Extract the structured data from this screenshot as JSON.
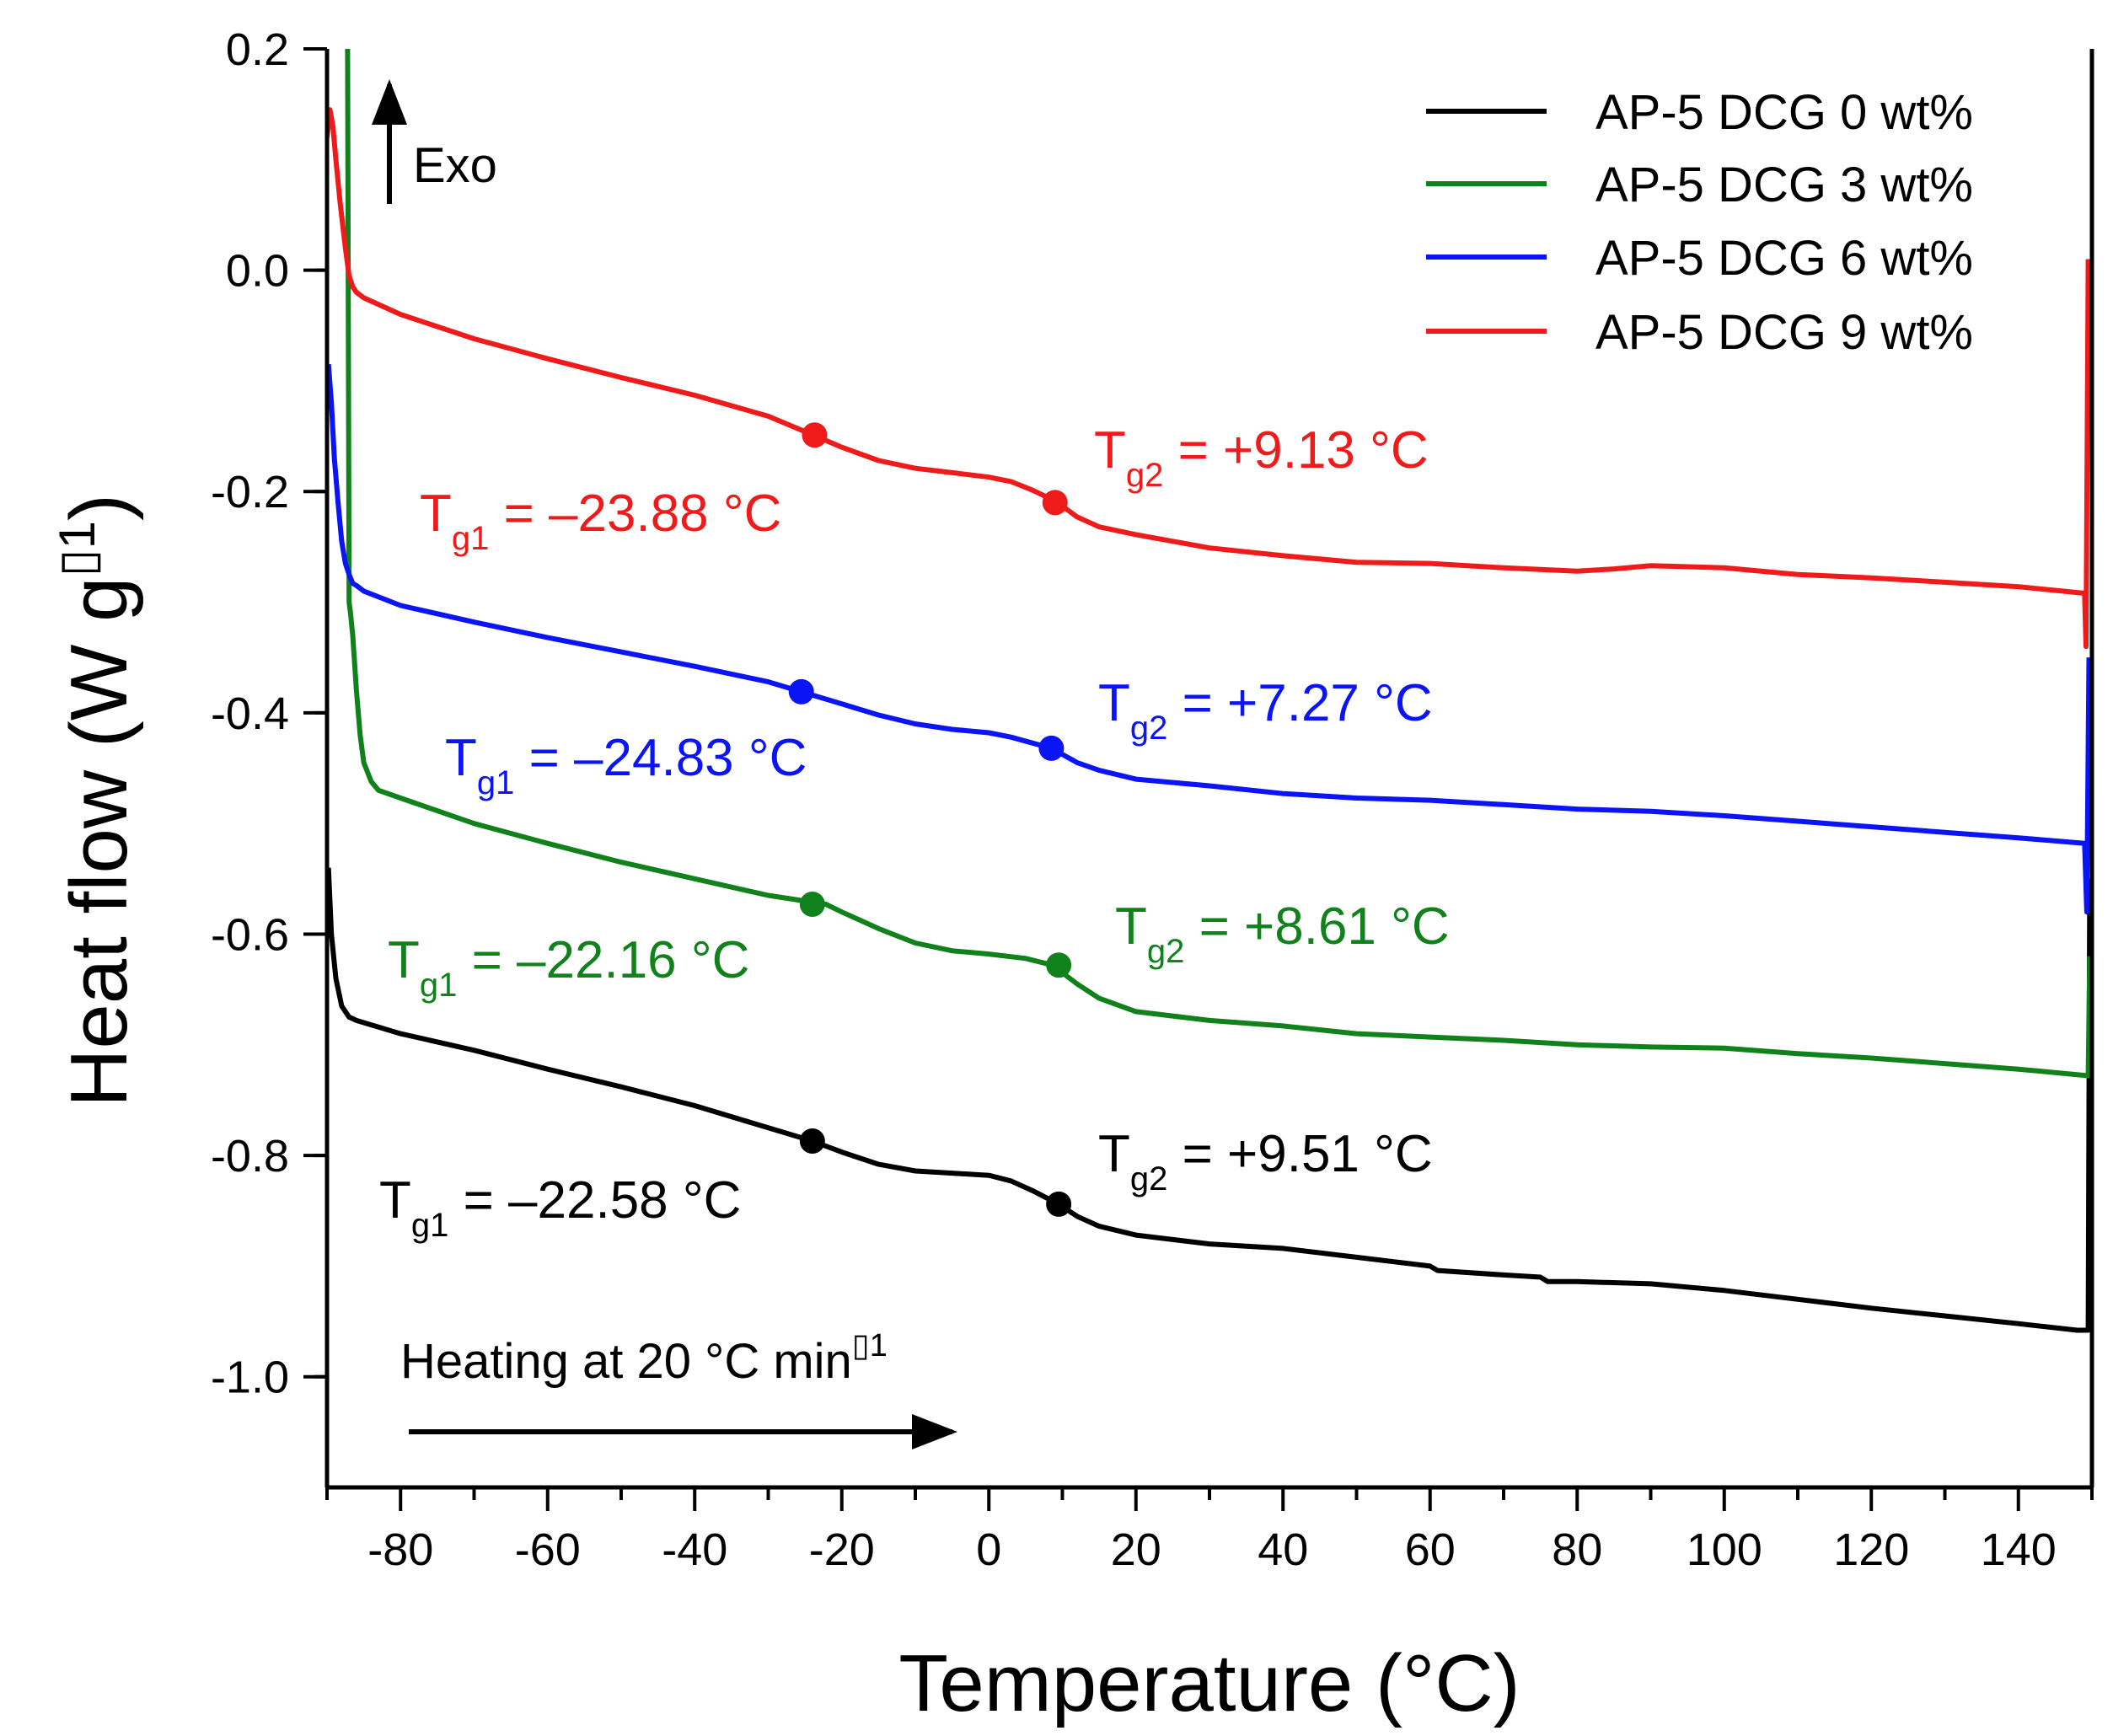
{
  "chart_data": {
    "type": "line",
    "title": "",
    "xlabel": "Temperature (°C)",
    "ylabel": "Heat flow (W g",
    "ylabel_sup": "1",
    "ylabel_close": ")",
    "xlim": [
      -90,
      150
    ],
    "ylim": [
      -1.1,
      0.2
    ],
    "xticks": [
      -80,
      -60,
      -40,
      -20,
      0,
      20,
      40,
      60,
      80,
      100,
      120,
      140
    ],
    "xtick_labels": [
      "-80",
      "-60",
      "-40",
      "-20",
      "0",
      "20",
      "40",
      "60",
      "80",
      "100",
      "120",
      "140"
    ],
    "yticks": [
      -1.0,
      -0.8,
      -0.6,
      -0.4,
      -0.2,
      0.0,
      0.2
    ],
    "ytick_labels": [
      "-1.0",
      "-0.8",
      "-0.6",
      "-0.4",
      "-0.2",
      "0.0",
      "0.2"
    ],
    "grid": false,
    "legend_position": "top-right",
    "series": [
      {
        "name": "AP-5 DCG 0 wt%",
        "color": "#000000",
        "x": [
          -89.8,
          -89.4,
          -88.8,
          -88,
          -87,
          -86,
          -85,
          -80,
          -70,
          -60,
          -50,
          -40,
          -30,
          -24,
          -20,
          -15,
          -10,
          -5,
          0,
          3,
          6,
          9.5,
          12,
          15,
          20,
          25,
          30,
          40,
          50,
          60,
          61,
          70,
          75,
          76,
          80,
          90,
          100,
          110,
          120,
          130,
          140,
          148,
          149.5,
          149.7
        ],
        "y": [
          -0.54,
          -0.6,
          -0.64,
          -0.665,
          -0.675,
          -0.678,
          -0.68,
          -0.69,
          -0.705,
          -0.722,
          -0.738,
          -0.755,
          -0.775,
          -0.787,
          -0.797,
          -0.808,
          -0.814,
          -0.816,
          -0.818,
          -0.823,
          -0.832,
          -0.844,
          -0.855,
          -0.864,
          -0.872,
          -0.876,
          -0.88,
          -0.884,
          -0.892,
          -0.9,
          -0.904,
          -0.908,
          -0.91,
          -0.914,
          -0.914,
          -0.916,
          -0.922,
          -0.93,
          -0.938,
          -0.945,
          -0.952,
          -0.958,
          -0.958,
          -0.55
        ]
      },
      {
        "name": "AP-5 DCG 3 wt%",
        "color": "#11821b",
        "x": [
          -87.2,
          -87,
          -86.8,
          -86.5,
          -86,
          -85.5,
          -85,
          -84,
          -83,
          -80,
          -70,
          -60,
          -50,
          -40,
          -30,
          -22.16,
          -20,
          -15,
          -10,
          -5,
          0,
          5,
          8.61,
          12,
          15,
          20,
          30,
          40,
          50,
          60,
          70,
          80,
          90,
          100,
          110,
          120,
          130,
          140,
          149.5,
          149.7
        ],
        "y": [
          0.2,
          -0.3,
          -0.31,
          -0.33,
          -0.38,
          -0.42,
          -0.445,
          -0.462,
          -0.47,
          -0.477,
          -0.5,
          -0.518,
          -0.535,
          -0.55,
          -0.565,
          -0.573,
          -0.58,
          -0.595,
          -0.608,
          -0.615,
          -0.618,
          -0.622,
          -0.628,
          -0.645,
          -0.658,
          -0.67,
          -0.678,
          -0.683,
          -0.69,
          -0.693,
          -0.696,
          -0.7,
          -0.702,
          -0.703,
          -0.708,
          -0.712,
          -0.717,
          -0.722,
          -0.728,
          -0.62
        ]
      },
      {
        "name": "AP-5 DCG 6 wt%",
        "color": "#0a14f5",
        "x": [
          -89.8,
          -89.4,
          -89,
          -88.5,
          -88,
          -87.5,
          -87,
          -86.5,
          -86,
          -85,
          -80,
          -70,
          -60,
          -50,
          -40,
          -30,
          -25.5,
          -20,
          -15,
          -10,
          -5,
          0,
          3,
          8.5,
          12,
          15,
          20,
          30,
          40,
          50,
          60,
          70,
          80,
          90,
          100,
          110,
          120,
          130,
          140,
          149,
          149.3,
          149.6
        ],
        "y": [
          -0.085,
          -0.12,
          -0.17,
          -0.21,
          -0.245,
          -0.265,
          -0.275,
          -0.283,
          -0.285,
          -0.29,
          -0.303,
          -0.318,
          -0.332,
          -0.345,
          -0.358,
          -0.372,
          -0.381,
          -0.392,
          -0.402,
          -0.41,
          -0.415,
          -0.418,
          -0.422,
          -0.432,
          -0.445,
          -0.452,
          -0.46,
          -0.466,
          -0.473,
          -0.477,
          -0.479,
          -0.483,
          -0.487,
          -0.489,
          -0.493,
          -0.498,
          -0.503,
          -0.508,
          -0.513,
          -0.518,
          -0.58,
          -0.35
        ]
      },
      {
        "name": "AP-5 DCG 9 wt%",
        "color": "#ef1b1b",
        "x": [
          -90,
          -89.6,
          -89.2,
          -88.8,
          -88.2,
          -87.5,
          -87,
          -86.5,
          -86,
          -85,
          -80,
          -70,
          -60,
          -50,
          -40,
          -30,
          -23.88,
          -20,
          -15,
          -10,
          -5,
          0,
          3,
          6,
          9.13,
          12,
          15,
          20,
          30,
          40,
          50,
          60,
          70,
          80,
          85,
          90,
          100,
          110,
          120,
          130,
          140,
          149,
          149.2,
          149.5
        ],
        "y": [
          0.12,
          0.145,
          0.13,
          0.1,
          0.06,
          0.02,
          -0.005,
          -0.015,
          -0.02,
          -0.025,
          -0.04,
          -0.062,
          -0.08,
          -0.097,
          -0.113,
          -0.132,
          -0.149,
          -0.16,
          -0.172,
          -0.179,
          -0.183,
          -0.187,
          -0.191,
          -0.199,
          -0.209,
          -0.223,
          -0.232,
          -0.239,
          -0.251,
          -0.258,
          -0.264,
          -0.265,
          -0.269,
          -0.272,
          -0.27,
          -0.267,
          -0.269,
          -0.275,
          -0.278,
          -0.282,
          -0.286,
          -0.292,
          -0.34,
          0.01
        ]
      }
    ],
    "markers": [
      {
        "series": 0,
        "x": -24.0,
        "y": -0.787
      },
      {
        "series": 0,
        "x": 9.5,
        "y": -0.844
      },
      {
        "series": 1,
        "x": -24.0,
        "y": -0.573
      },
      {
        "series": 1,
        "x": 9.5,
        "y": -0.628
      },
      {
        "series": 2,
        "x": -25.5,
        "y": -0.381
      },
      {
        "series": 2,
        "x": 8.5,
        "y": -0.432
      },
      {
        "series": 3,
        "x": -23.7,
        "y": -0.149
      },
      {
        "series": 3,
        "x": 9.0,
        "y": -0.21
      }
    ],
    "annotations": [
      {
        "series": 3,
        "main": "T",
        "sub": "g1",
        "rest": " = –23.88 °C"
      },
      {
        "series": 3,
        "main": "T",
        "sub": "g2",
        "rest": " = +9.13 °C"
      },
      {
        "series": 2,
        "main": "T",
        "sub": "g1",
        "rest": " = –24.83 °C"
      },
      {
        "series": 2,
        "main": "T",
        "sub": "g2",
        "rest": " = +7.27 °C"
      },
      {
        "series": 1,
        "main": "T",
        "sub": "g1",
        "rest": " = –22.16 °C"
      },
      {
        "series": 1,
        "main": "T",
        "sub": "g2",
        "rest": " = +8.61 °C"
      },
      {
        "series": 0,
        "main": "T",
        "sub": "g1",
        "rest": " = –22.58 °C"
      },
      {
        "series": 0,
        "main": "T",
        "sub": "g2",
        "rest": " = +9.51 °C"
      }
    ],
    "exo_label": "Exo",
    "heating_label": "Heating at 20 °C min",
    "heating_label_sup": "1"
  }
}
